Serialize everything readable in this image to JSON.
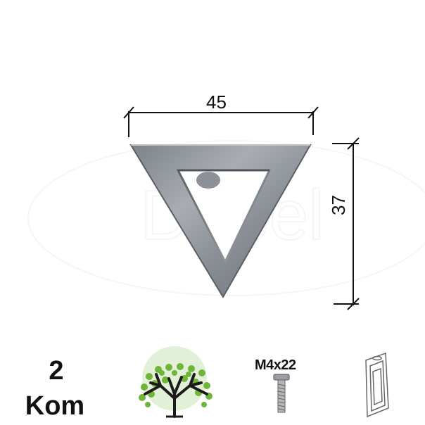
{
  "dimensions": {
    "width": "45",
    "height": "37"
  },
  "quantity": {
    "number": "2",
    "unit": "Kom"
  },
  "screw": {
    "label": "M4x22"
  },
  "watermark": {
    "text": "Dabel"
  },
  "icons": {
    "tree": "tree-icon",
    "screw": "screw-icon",
    "package": "blister-package-icon"
  },
  "colors": {
    "metal": "#8e939a",
    "line": "#111111",
    "leaf": "#6fb53a"
  }
}
